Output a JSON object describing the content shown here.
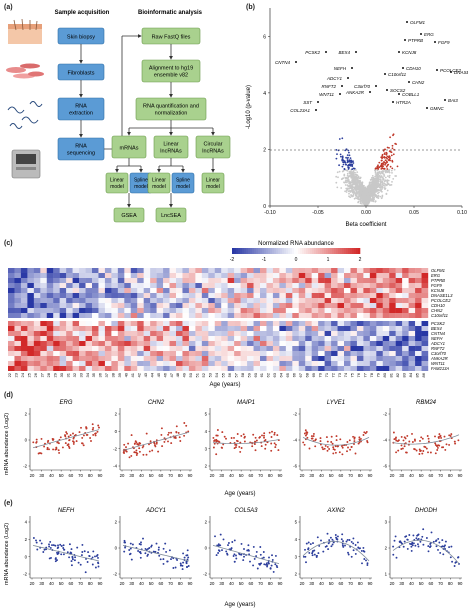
{
  "panels": {
    "a": "(a)",
    "b": "(b)",
    "c": "(c)",
    "d": "(d)",
    "e": "(e)"
  },
  "flow": {
    "col_left_title": "Sample acquisition",
    "col_right_title": "Bioinformatic analysis",
    "skin_biopsy": "Skin biopsy",
    "fibroblasts": "Fibroblasts",
    "rna_extraction": [
      "RNA",
      "extraction"
    ],
    "rna_sequencing": [
      "RNA",
      "sequencing"
    ],
    "raw_fastq": "Raw FastQ files",
    "alignment": [
      "Alignment to hg19",
      "ensemble v82"
    ],
    "quant": [
      "RNA quantification and",
      "normalization"
    ],
    "mrnas": "mRNAs",
    "linear_lnc": [
      "Linear",
      "lncRNAs"
    ],
    "circular_lnc": [
      "Circular",
      "lncRNAs"
    ],
    "linear_model": [
      "Linear",
      "model"
    ],
    "spline_model": [
      "Spline",
      "model"
    ],
    "gsea": "GSEA",
    "lncsea": "LncSEA"
  },
  "volcano": {
    "ylabel": "-Log10 (p-value)",
    "xlabel": "Beta coefficient",
    "xticks": [
      "-0.10",
      "-0.05",
      "0.00",
      "0.05",
      "0.10"
    ],
    "yticks": [
      "0",
      "2",
      "4",
      "6"
    ],
    "labels_neg": [
      "PCSK2",
      "BEX4",
      "CNTN4",
      "NEFH",
      "ADCY1",
      "RNFT2",
      "WNT11",
      "C3orf70",
      "ANKA2R",
      "SST",
      "COL23A1"
    ],
    "labels_pos": [
      "OLFM1",
      "ERG",
      "PTPRB",
      "FGF9",
      "KCNJ8",
      "PCOLCE2",
      "CDH10",
      "DNASE1L3",
      "C10orf11",
      "CHN2",
      "SOCS2",
      "COBLL1",
      "HTR2A",
      "BAI3",
      "GMNC"
    ]
  },
  "heatmap": {
    "legend_title": "Normalized RNA abundance",
    "legend_ticks": [
      "-2",
      "-1",
      "0",
      "1",
      "2"
    ],
    "xlabel": "Age (years)",
    "ages": [
      "22",
      "23",
      "24",
      "25",
      "26",
      "27",
      "28",
      "29",
      "30",
      "31",
      "32",
      "33",
      "34",
      "35",
      "36",
      "37",
      "38",
      "39",
      "40",
      "41",
      "42",
      "43",
      "44",
      "45",
      "46",
      "47",
      "48",
      "49",
      "50",
      "51",
      "52",
      "53",
      "54",
      "55",
      "56",
      "57",
      "58",
      "59",
      "60",
      "61",
      "62",
      "63",
      "64",
      "65",
      "66",
      "67",
      "68",
      "69",
      "70",
      "71",
      "72",
      "73",
      "74",
      "75",
      "76",
      "77",
      "78",
      "79",
      "80",
      "81",
      "82",
      "83",
      "84",
      "85",
      "86"
    ],
    "genes_top": [
      "OLFM1",
      "ERG",
      "PTPRB",
      "FGF9",
      "KCNJ8",
      "DNASE1L3",
      "PCOLCE2",
      "CDH10",
      "CHN2",
      "C10orf11"
    ],
    "genes_bottom": [
      "PCSK2",
      "BEX4",
      "CNTN4",
      "NEFH",
      "ADCY1",
      "RNFT2",
      "C3orf70",
      "ANKA2R",
      "WNT11",
      "FAM213A"
    ]
  },
  "scatter_d": {
    "ylabel": "mRNA abundance (Log2)",
    "xlabel": "Age (years)",
    "xticks": [
      "20",
      "30",
      "40",
      "50",
      "60",
      "70",
      "80",
      "90"
    ],
    "genes": [
      "ERG",
      "CHN2",
      "MAIP1",
      "LYVE1",
      "RBM24"
    ],
    "yticks": [
      [
        "-2",
        "0",
        "2"
      ],
      [
        "-4",
        "-2",
        "0",
        "2"
      ],
      [
        "2",
        "3",
        "4",
        "5"
      ],
      [
        "-6",
        "-4",
        "-2"
      ],
      [
        "-6",
        "-4",
        "-2"
      ]
    ]
  },
  "scatter_e": {
    "ylabel": "mRNA abundance (Log2)",
    "xlabel": "Age (years)",
    "xticks": [
      "20",
      "30",
      "40",
      "50",
      "60",
      "70",
      "80",
      "90"
    ],
    "genes": [
      "NEFH",
      "ADCY1",
      "COL5A3",
      "AXIN2",
      "DHODH"
    ],
    "yticks": [
      [
        "-2",
        "0",
        "2",
        "4"
      ],
      [
        "-2",
        "0",
        "2"
      ],
      [
        "-2",
        "0",
        "2"
      ],
      [
        "2",
        "3",
        "4",
        "5"
      ],
      [
        "1",
        "2",
        "3"
      ]
    ]
  },
  "colors": {
    "box_blue": "#5b9bd5",
    "box_green": "#a9d18e",
    "red": "#c0392b",
    "blue": "#2c3e9c",
    "grey": "#c8c8c8"
  }
}
